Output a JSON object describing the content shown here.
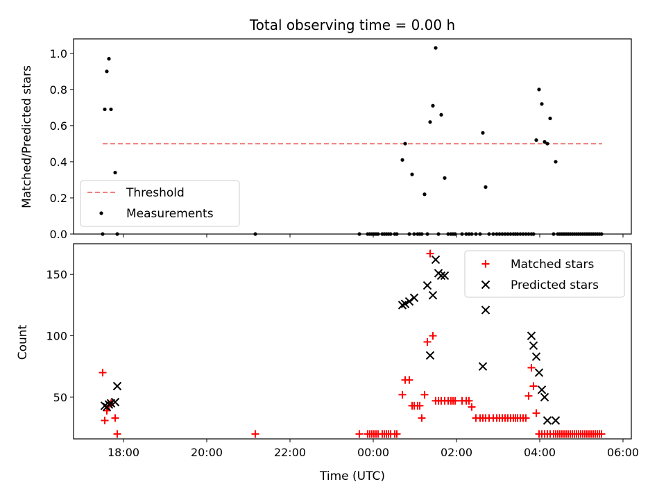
{
  "title": "Total observing time = 0.00 h",
  "colors": {
    "threshold": "#f08080",
    "measurement": "#000000",
    "matched": "#ff0000",
    "predicted": "#000000"
  },
  "chart_data": [
    {
      "type": "scatter",
      "ylabel": "Matched/Predicted stars",
      "xlabel": "",
      "ylim": [
        0,
        1.08
      ],
      "yticks": [
        0.0,
        0.2,
        0.4,
        0.6,
        0.8,
        1.0
      ],
      "ytick_labels": [
        "0.0",
        "0.2",
        "0.4",
        "0.6",
        "0.8",
        "1.0"
      ],
      "legend": {
        "position": "lower-left",
        "entries": [
          "Threshold",
          "Measurements"
        ]
      },
      "threshold": {
        "name": "Threshold",
        "y": 0.5,
        "x_range": [
          "17:30",
          "05:30"
        ],
        "style": "dashed"
      },
      "series": [
        {
          "name": "Measurements",
          "x": [
            "17:30",
            "17:33",
            "17:36",
            "17:39",
            "17:42",
            "17:48",
            "17:51",
            "21:10",
            "23:40",
            "23:52",
            "23:55",
            "23:58",
            "00:01",
            "00:04",
            "00:07",
            "00:13",
            "00:16",
            "00:19",
            "00:22",
            "00:25",
            "00:31",
            "00:34",
            "00:42",
            "00:46",
            "00:52",
            "00:56",
            "00:59",
            "01:04",
            "01:07",
            "01:10",
            "01:14",
            "01:18",
            "01:22",
            "01:26",
            "01:30",
            "01:34",
            "01:38",
            "01:43",
            "01:48",
            "01:52",
            "01:55",
            "01:58",
            "02:08",
            "02:14",
            "02:18",
            "02:22",
            "02:28",
            "02:34",
            "02:38",
            "02:42",
            "02:47",
            "02:53",
            "02:58",
            "03:02",
            "03:06",
            "03:10",
            "03:14",
            "03:18",
            "03:22",
            "03:25",
            "03:28",
            "03:32",
            "03:36",
            "03:40",
            "03:44",
            "03:48",
            "03:51",
            "03:55",
            "03:59",
            "04:03",
            "04:07",
            "04:11",
            "04:15",
            "04:20",
            "04:23",
            "04:26",
            "04:29",
            "04:32",
            "04:35",
            "04:38",
            "04:41",
            "04:44",
            "04:47",
            "04:50",
            "04:53",
            "04:56",
            "04:59",
            "05:02",
            "05:05",
            "05:08",
            "05:11",
            "05:14",
            "05:17",
            "05:20",
            "05:23",
            "05:26",
            "05:29"
          ],
          "y": [
            0.0,
            0.69,
            0.9,
            0.97,
            0.69,
            0.34,
            0.0,
            0.0,
            0.0,
            0.0,
            0.0,
            0.0,
            0.0,
            0.0,
            0.0,
            0.0,
            0.0,
            0.0,
            0.0,
            0.0,
            0.0,
            0.0,
            0.41,
            0.5,
            0.0,
            0.33,
            0.0,
            0.0,
            0.0,
            0.0,
            0.22,
            0.0,
            0.62,
            0.71,
            1.03,
            0.0,
            0.66,
            0.31,
            0.0,
            0.0,
            0.0,
            0.0,
            0.0,
            0.0,
            0.0,
            0.0,
            0.0,
            0.0,
            0.56,
            0.26,
            0.0,
            0.0,
            0.0,
            0.0,
            0.0,
            0.0,
            0.0,
            0.0,
            0.0,
            0.0,
            0.0,
            0.0,
            0.0,
            0.0,
            0.0,
            0.0,
            0.0,
            0.52,
            0.8,
            0.72,
            0.51,
            0.5,
            0.64,
            0.0,
            0.4,
            0.0,
            0.0,
            0.0,
            0.0,
            0.0,
            0.0,
            0.0,
            0.0,
            0.0,
            0.0,
            0.0,
            0.0,
            0.0,
            0.0,
            0.0,
            0.0,
            0.0,
            0.0,
            0.0,
            0.0,
            0.0,
            0.0
          ]
        }
      ]
    },
    {
      "type": "scatter",
      "ylabel": "Count",
      "xlabel": "Time (UTC)",
      "ylim": [
        16,
        175
      ],
      "yticks": [
        50,
        100,
        150
      ],
      "ytick_labels": [
        "50",
        "100",
        "150"
      ],
      "xticks": [
        "18:00",
        "20:00",
        "22:00",
        "00:00",
        "02:00",
        "04:00",
        "06:00"
      ],
      "legend": {
        "position": "upper-right",
        "entries": [
          "Matched stars",
          "Predicted stars"
        ]
      },
      "series": [
        {
          "name": "Matched stars",
          "marker": "+",
          "x": [
            "17:30",
            "17:33",
            "17:36",
            "17:39",
            "17:42",
            "17:48",
            "17:51",
            "21:10",
            "23:40",
            "23:52",
            "23:55",
            "23:58",
            "00:01",
            "00:04",
            "00:07",
            "00:13",
            "00:16",
            "00:19",
            "00:22",
            "00:25",
            "00:31",
            "00:34",
            "00:42",
            "00:46",
            "00:52",
            "00:56",
            "00:59",
            "01:04",
            "01:07",
            "01:10",
            "01:14",
            "01:18",
            "01:22",
            "01:26",
            "01:30",
            "01:34",
            "01:38",
            "01:43",
            "01:48",
            "01:52",
            "01:55",
            "01:58",
            "02:08",
            "02:14",
            "02:18",
            "02:22",
            "02:28",
            "02:34",
            "02:38",
            "02:42",
            "02:47",
            "02:53",
            "02:58",
            "03:02",
            "03:06",
            "03:10",
            "03:14",
            "03:18",
            "03:22",
            "03:25",
            "03:28",
            "03:32",
            "03:36",
            "03:40",
            "03:44",
            "03:48",
            "03:51",
            "03:55",
            "03:59",
            "04:03",
            "04:07",
            "04:11",
            "04:15",
            "04:20",
            "04:23",
            "04:26",
            "04:29",
            "04:32",
            "04:35",
            "04:38",
            "04:41",
            "04:44",
            "04:47",
            "04:50",
            "04:53",
            "04:56",
            "04:59",
            "05:02",
            "05:05",
            "05:08",
            "05:11",
            "05:14",
            "05:17",
            "05:20",
            "05:23",
            "05:26",
            "05:29"
          ],
          "y": [
            70,
            31,
            39,
            43,
            45,
            33,
            20,
            20,
            20,
            20,
            20,
            20,
            20,
            20,
            20,
            20,
            20,
            20,
            20,
            20,
            20,
            20,
            52,
            64,
            64,
            43,
            43,
            43,
            43,
            33,
            52,
            95,
            167,
            100,
            47,
            47,
            47,
            47,
            47,
            47,
            47,
            47,
            47,
            47,
            47,
            42,
            33,
            33,
            33,
            33,
            33,
            33,
            33,
            33,
            33,
            33,
            33,
            33,
            33,
            33,
            33,
            33,
            33,
            33,
            51,
            74,
            59,
            37,
            20,
            20,
            20,
            20,
            20,
            20,
            20,
            20,
            20,
            20,
            20,
            20,
            20,
            20,
            20,
            20,
            20,
            20,
            20,
            20,
            20,
            20,
            20,
            20,
            20,
            20,
            20,
            20,
            20
          ]
        },
        {
          "name": "Predicted stars",
          "marker": "x",
          "x": [
            "17:33",
            "17:36",
            "17:39",
            "17:42",
            "17:48",
            "17:51",
            "00:42",
            "00:46",
            "00:52",
            "00:59",
            "01:18",
            "01:22",
            "01:26",
            "01:30",
            "01:34",
            "01:38",
            "01:43",
            "02:38",
            "02:42",
            "03:48",
            "03:51",
            "03:55",
            "03:59",
            "04:03",
            "04:07",
            "04:11",
            "04:23"
          ],
          "y": [
            43,
            42,
            44,
            45,
            46,
            59,
            125,
            126,
            128,
            131,
            141,
            84,
            133,
            162,
            151,
            149,
            149,
            75,
            121,
            100,
            92,
            83,
            70,
            56,
            50,
            31,
            31
          ]
        }
      ]
    }
  ]
}
